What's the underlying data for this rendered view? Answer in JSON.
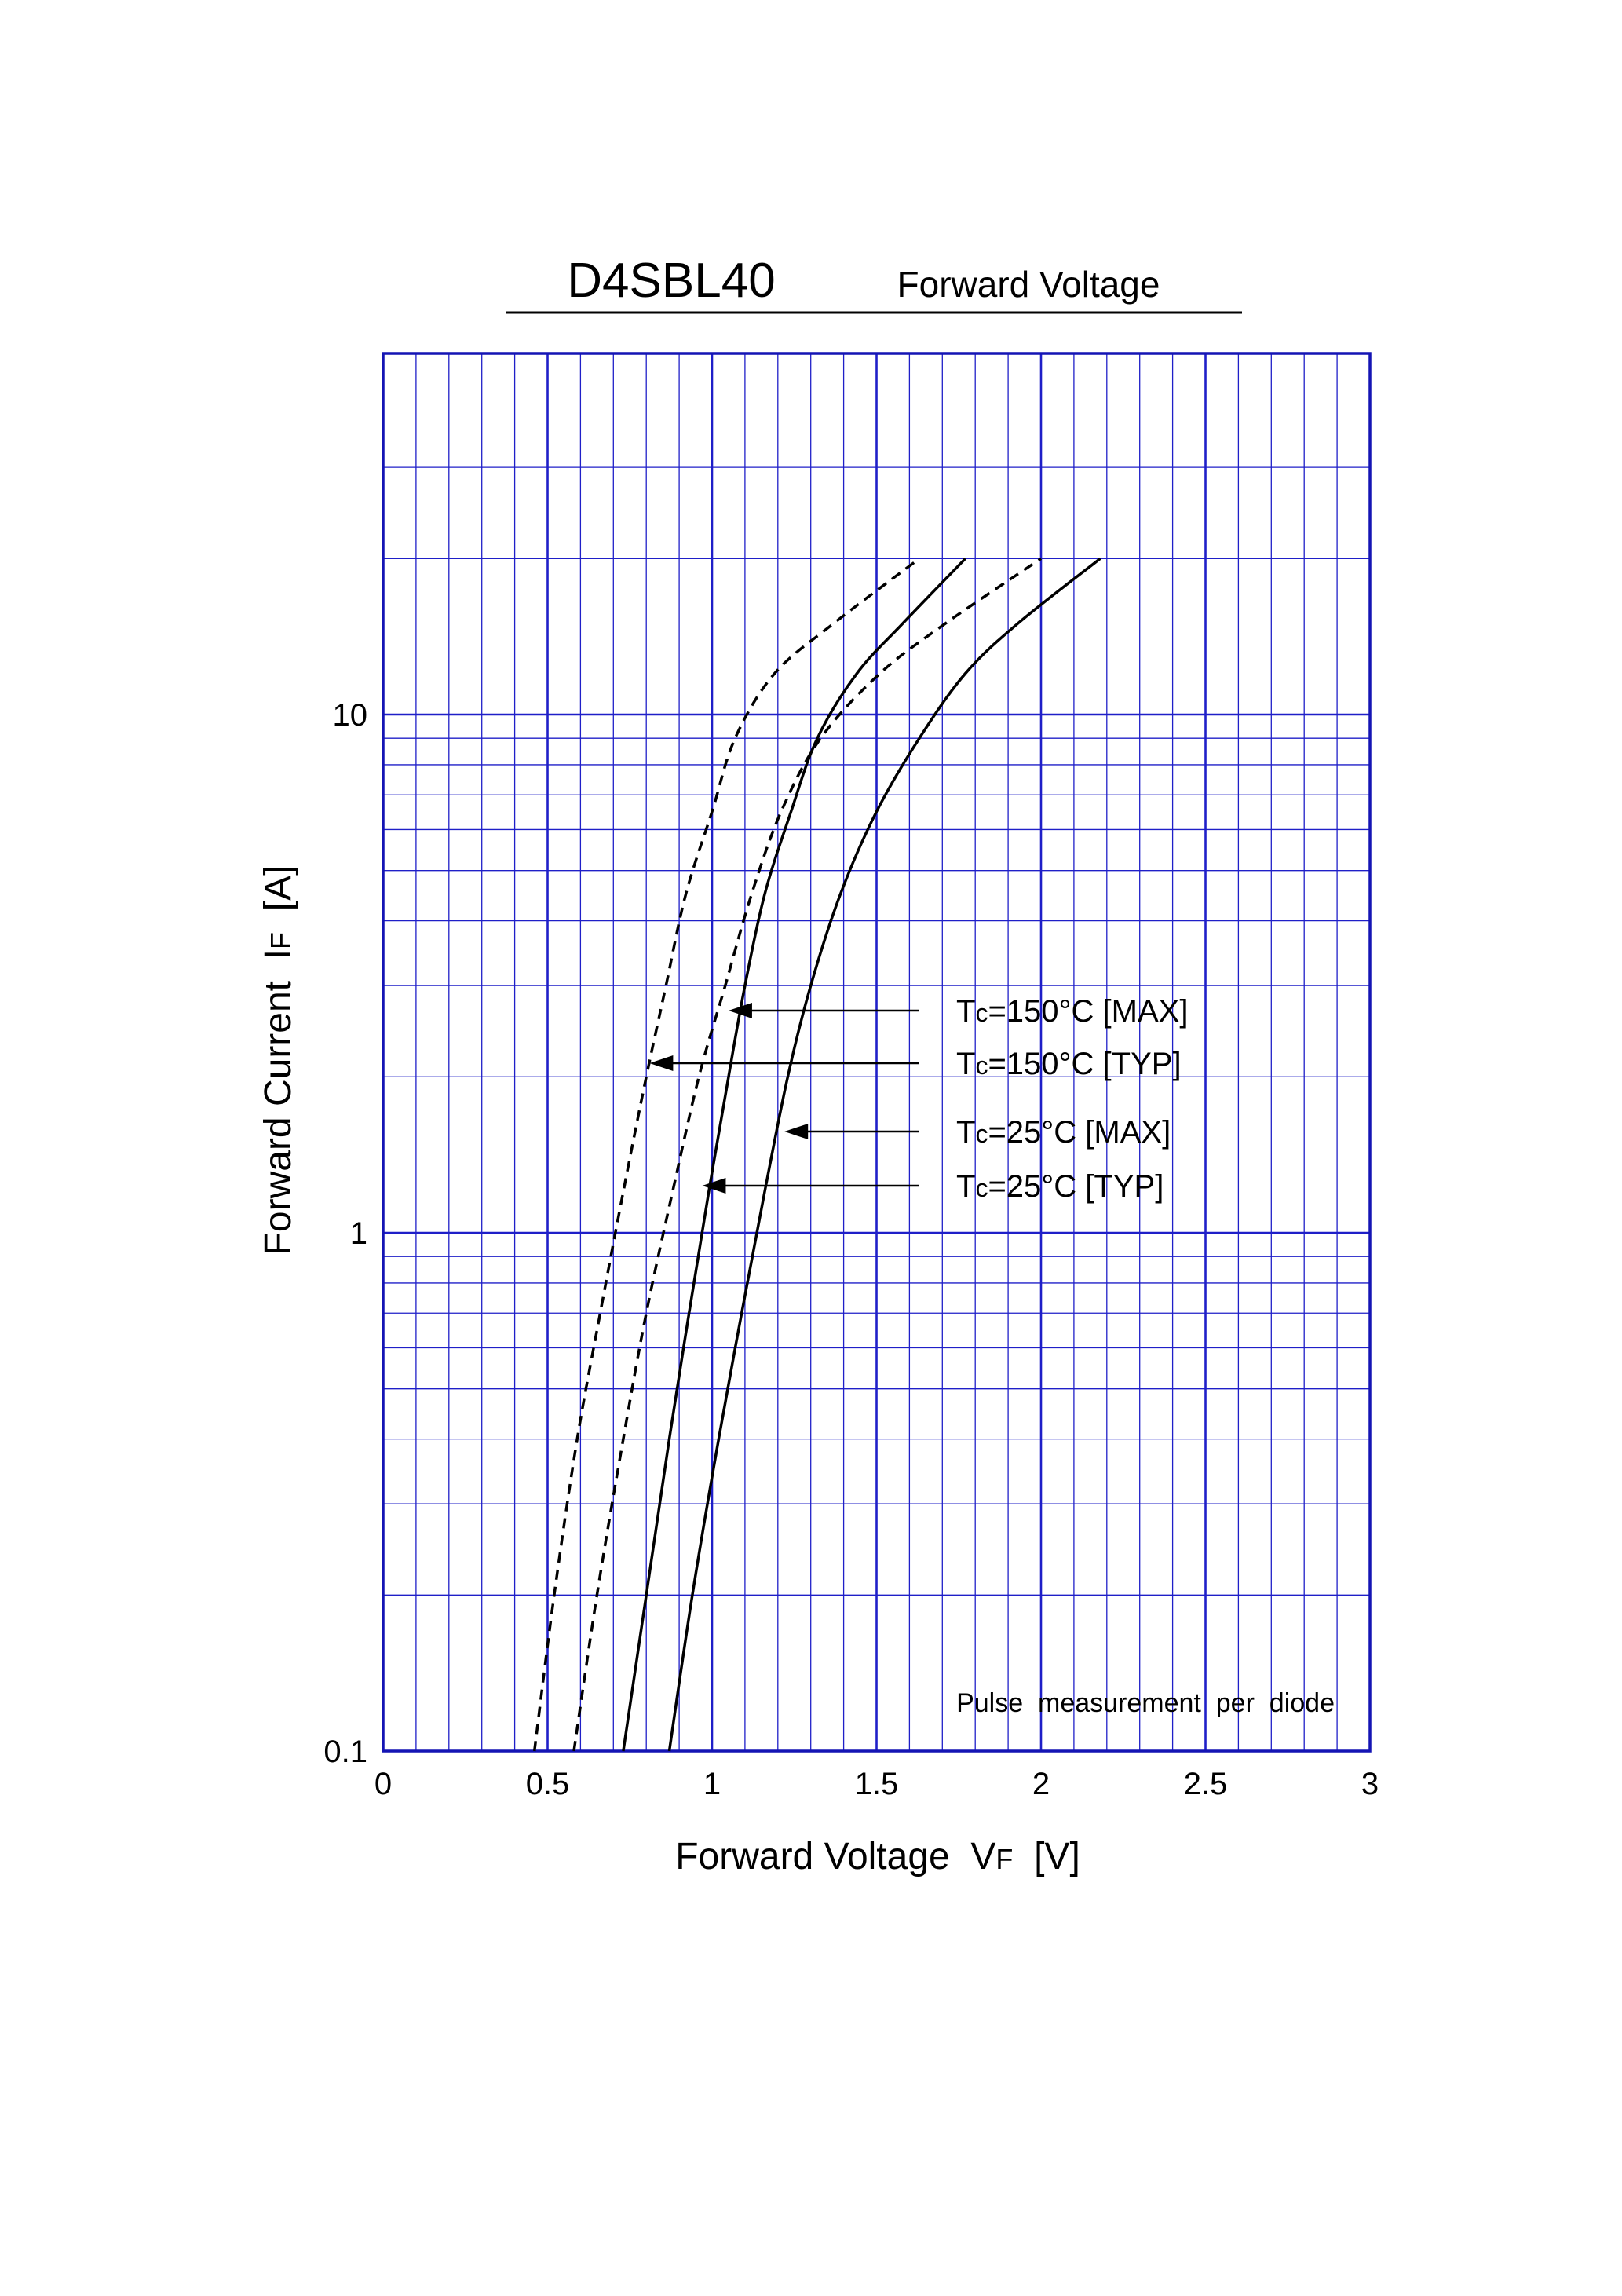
{
  "chart_data": {
    "type": "line",
    "title": "D4SBL40",
    "subtitle": "Forward  Voltage",
    "xlabel": "Forward Voltage",
    "xlabel_symbol": "V",
    "xlabel_subscript": "F",
    "xlabel_unit": "[V]",
    "ylabel": "Forward Current",
    "ylabel_symbol": "I",
    "ylabel_subscript": "F",
    "ylabel_unit": "[A]",
    "xlim": [
      0,
      3
    ],
    "ylim": [
      0.1,
      40
    ],
    "yscale": "log",
    "grid": true,
    "x_ticks": [
      {
        "value": 0,
        "label": "0"
      },
      {
        "value": 0.5,
        "label": "0.5"
      },
      {
        "value": 1,
        "label": "1"
      },
      {
        "value": 1.5,
        "label": "1.5"
      },
      {
        "value": 2,
        "label": "2"
      },
      {
        "value": 2.5,
        "label": "2.5"
      },
      {
        "value": 3,
        "label": "3"
      }
    ],
    "y_ticks": [
      {
        "value": 0.1,
        "label": "0.1"
      },
      {
        "value": 1,
        "label": "1"
      },
      {
        "value": 10,
        "label": "10"
      }
    ],
    "series": [
      {
        "name": "Tc=150°C [MAX]",
        "style": "solid",
        "x": [
          0.73,
          0.8,
          0.87,
          0.93,
          0.99,
          1.05,
          1.1,
          1.16,
          1.24,
          1.32,
          1.44,
          1.58,
          1.77
        ],
        "y": [
          0.1,
          0.2,
          0.4,
          0.7,
          1.2,
          2.0,
          3.0,
          4.5,
          6.5,
          9.0,
          12.0,
          15.0,
          20.0
        ]
      },
      {
        "name": "Tc=150°C [TYP]",
        "style": "dashed",
        "x": [
          0.46,
          0.52,
          0.59,
          0.66,
          0.73,
          0.8,
          0.86,
          0.92,
          1.0,
          1.07,
          1.19,
          1.37,
          1.63
        ],
        "y": [
          0.1,
          0.2,
          0.4,
          0.7,
          1.2,
          2.0,
          3.0,
          4.5,
          6.5,
          9.0,
          12.0,
          15.0,
          20.0
        ]
      },
      {
        "name": "Tc=25°C [MAX]",
        "style": "solid",
        "x": [
          0.87,
          0.94,
          1.02,
          1.09,
          1.16,
          1.23,
          1.3,
          1.39,
          1.5,
          1.63,
          1.77,
          1.93,
          2.18
        ],
        "y": [
          0.1,
          0.2,
          0.4,
          0.7,
          1.2,
          2.0,
          3.0,
          4.5,
          6.5,
          9.0,
          12.0,
          15.0,
          20.0
        ]
      },
      {
        "name": "Tc=25°C [TYP]",
        "style": "dashed",
        "x": [
          0.58,
          0.65,
          0.73,
          0.8,
          0.88,
          0.96,
          1.04,
          1.12,
          1.21,
          1.33,
          1.51,
          1.71,
          2.0
        ],
        "y": [
          0.1,
          0.2,
          0.4,
          0.7,
          1.2,
          2.0,
          3.0,
          4.5,
          6.5,
          9.0,
          12.0,
          15.0,
          20.0
        ]
      }
    ],
    "annotations": [
      {
        "text": "Tc=150°C [MAX]",
        "points_to": "Tc=150°C [MAX]",
        "arrow_tip": {
          "x": 1.05,
          "y": 2.7
        }
      },
      {
        "text": "Tc=150°C [TYP]",
        "points_to": "Tc=150°C [TYP]",
        "arrow_tip": {
          "x": 0.81,
          "y": 2.15
        }
      },
      {
        "text": "Tc=25°C [MAX]",
        "points_to": "Tc=25°C [MAX]",
        "arrow_tip": {
          "x": 1.22,
          "y": 1.55
        }
      },
      {
        "text": "Tc=25°C [TYP]",
        "points_to": "Tc=25°C [TYP]",
        "arrow_tip": {
          "x": 0.97,
          "y": 1.22
        }
      }
    ],
    "note": "Pulse  measurement  per  diode",
    "colors": {
      "grid": "#1f1fc8",
      "frame": "#1414b4",
      "curves": "#000000"
    }
  }
}
